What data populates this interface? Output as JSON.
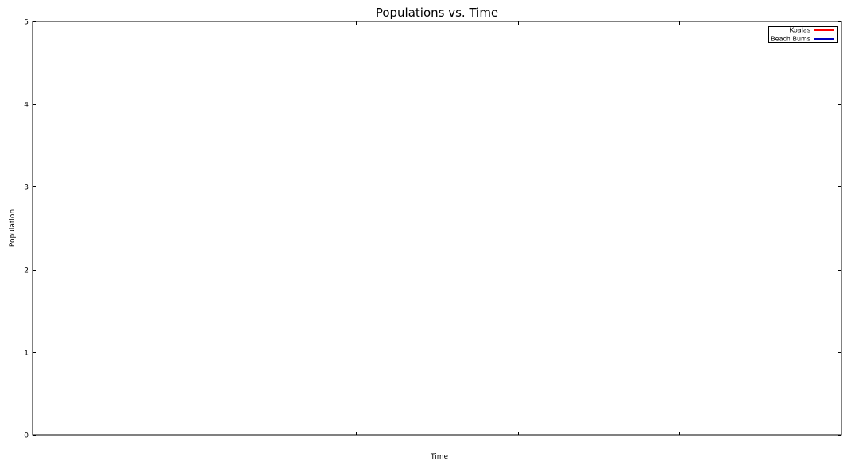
{
  "chart_data": {
    "type": "line",
    "title": "Populations vs. Time",
    "xlabel": "Time",
    "ylabel": "Population",
    "ylim": [
      0,
      5
    ],
    "y_ticks": [
      0,
      1,
      2,
      3,
      4,
      5
    ],
    "x_tick_count": 5,
    "x_tick_labels": [],
    "grid": false,
    "legend_position": "top-right",
    "series": [
      {
        "name": "Koalas",
        "color": "#ff0000",
        "x": [],
        "y": []
      },
      {
        "name": "Beach Bums",
        "color": "#0000c0",
        "x": [],
        "y": []
      }
    ]
  }
}
